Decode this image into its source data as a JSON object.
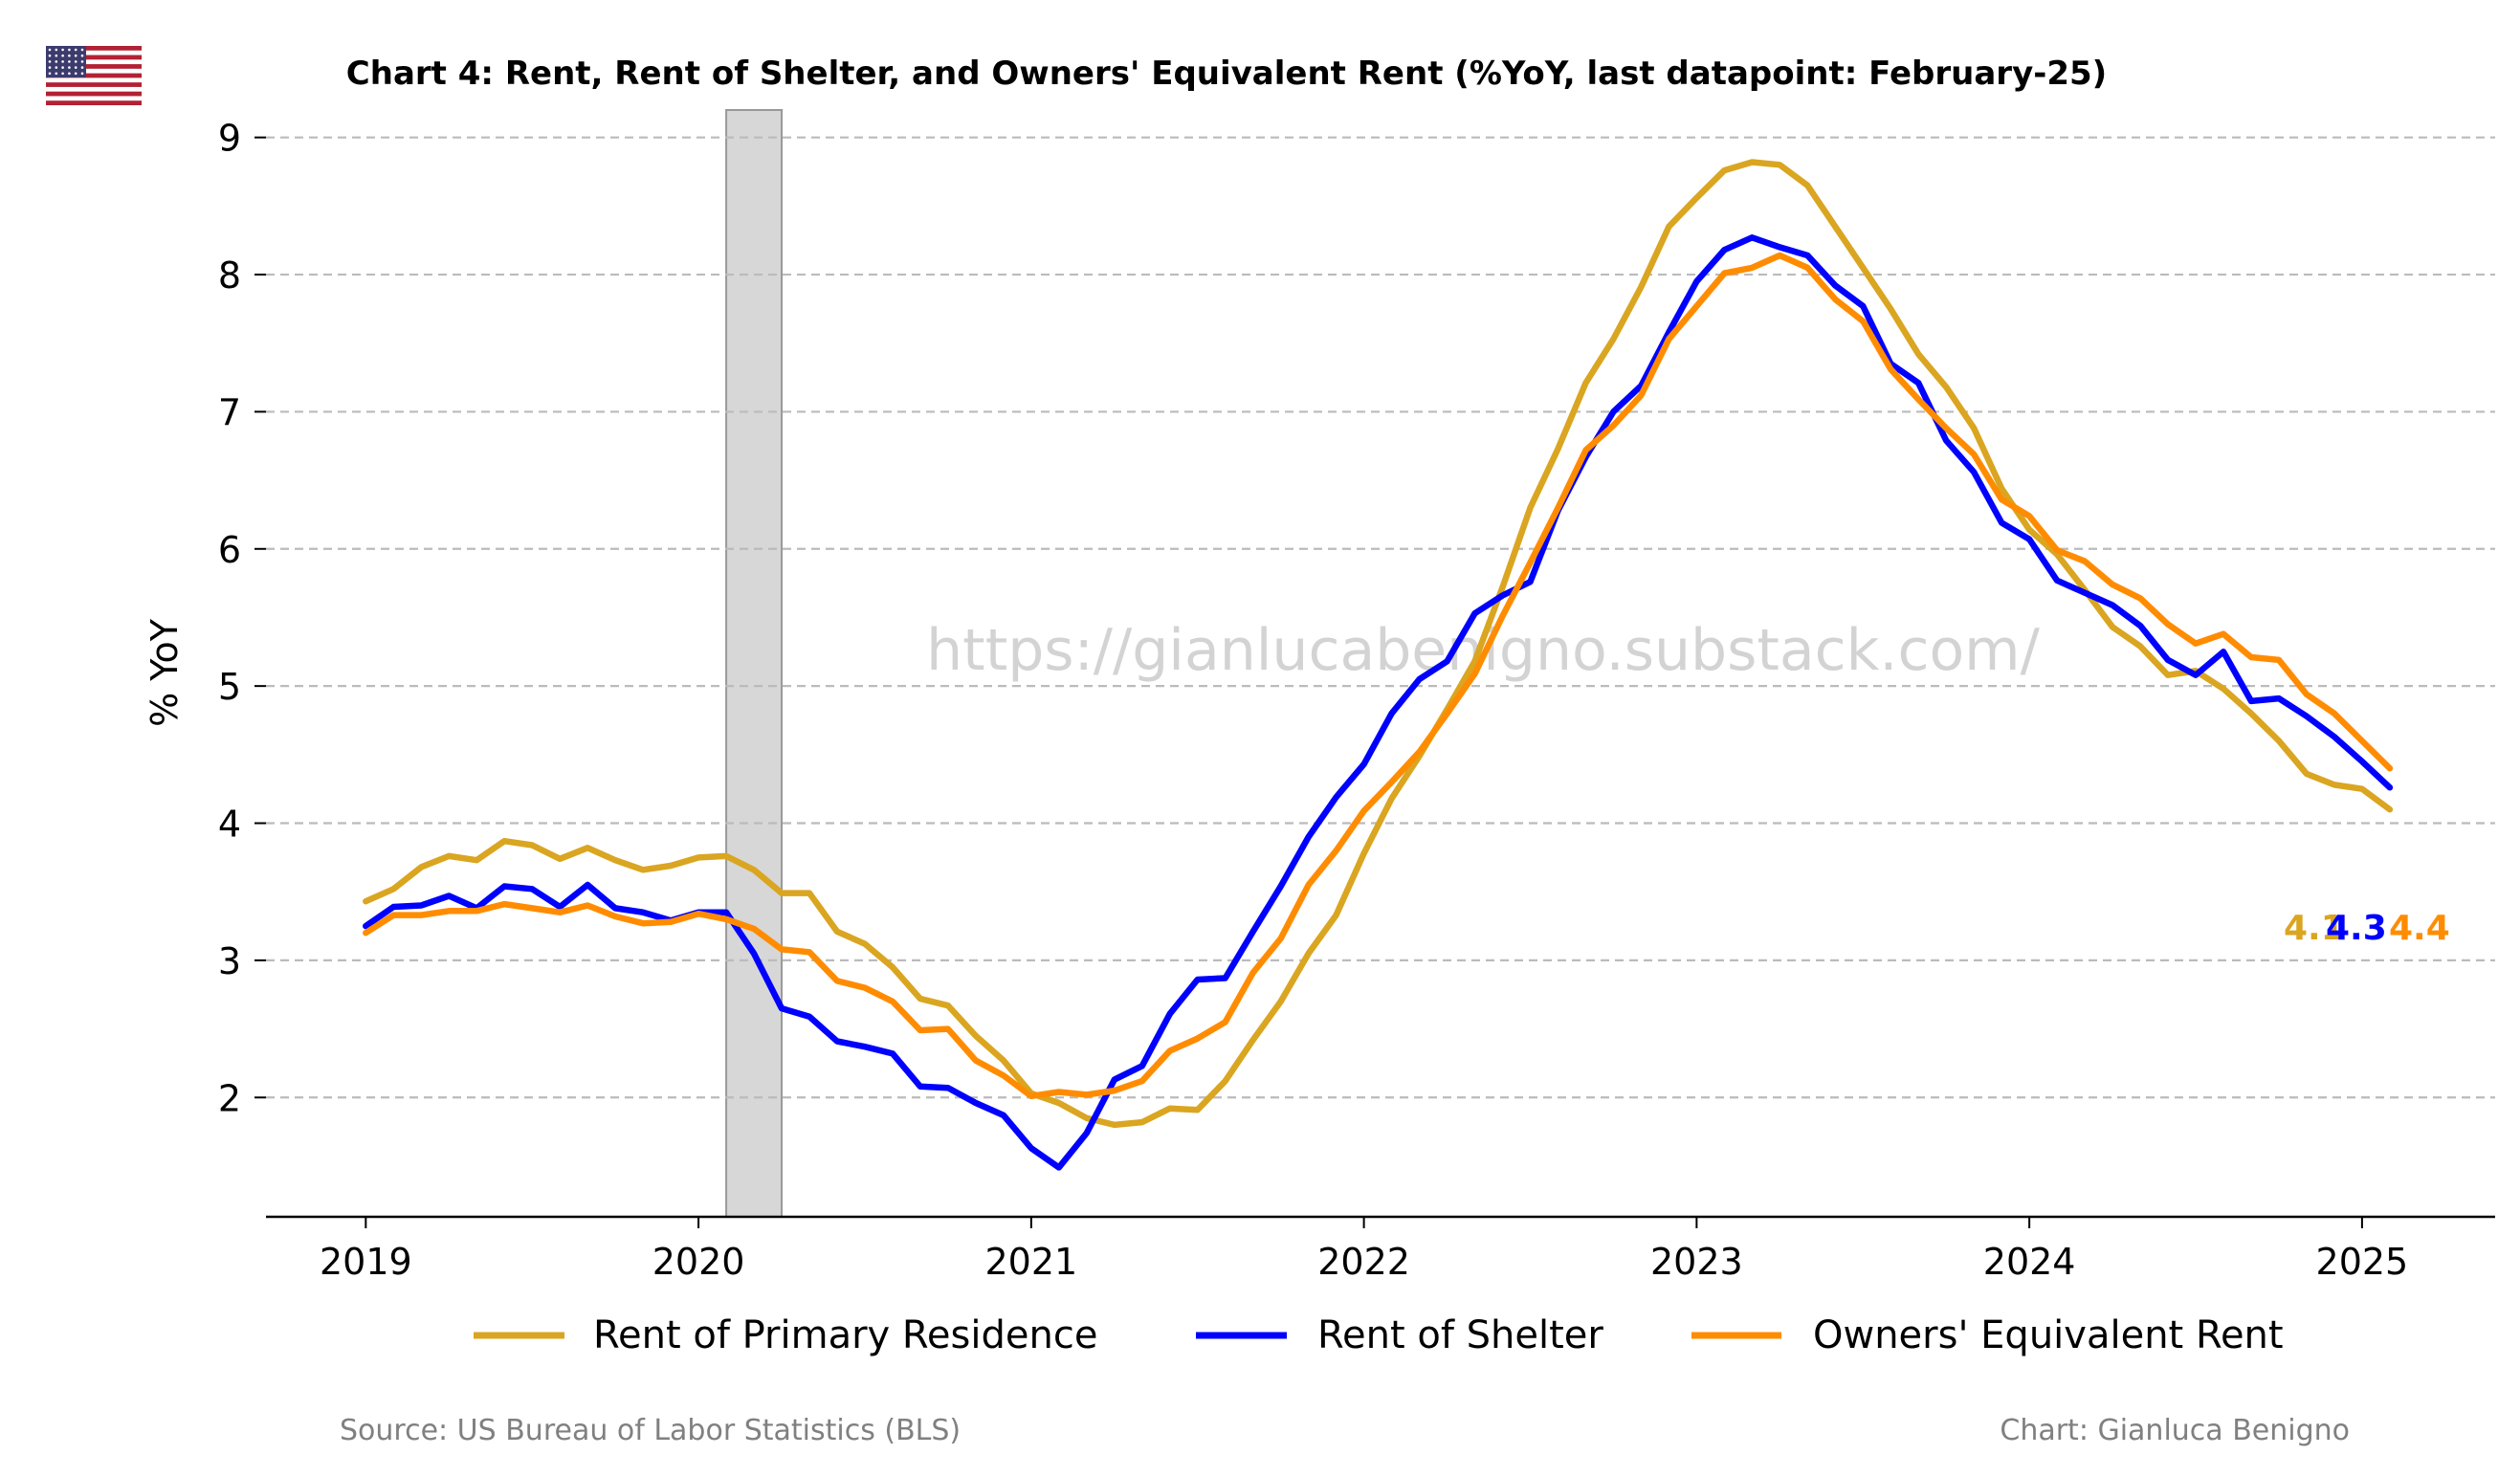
{
  "colors": {
    "rent_primary": "#DAA520",
    "rent_shelter": "#0000FF",
    "oer": "#FF8C00",
    "recession_band": "#BDBDBD",
    "grid": "#BBBBBB",
    "footer": "#808080",
    "watermark": "#D3D3D3"
  },
  "flag_icon": "us-flag-icon",
  "watermark": "https://gianlucabenigno.substack.com/",
  "footer": {
    "source": "Source: US Bureau of Labor Statistics (BLS)",
    "credit": "Chart: Gianluca Benigno"
  },
  "chart_data": {
    "type": "line",
    "title": "Chart 4: Rent, Rent of Shelter, and Owners' Equivalent Rent (%YoY, last datapoint: February-25)",
    "ylabel": "% YoY",
    "xlabel": "",
    "xlim": [
      2018.7,
      2025.4
    ],
    "ylim": [
      1.13,
      9.2
    ],
    "yticks": [
      2,
      3,
      4,
      5,
      6,
      7,
      8,
      9
    ],
    "xticks": [
      2019,
      2020,
      2021,
      2022,
      2023,
      2024,
      2025
    ],
    "grid": "horizontal dashed",
    "legend_position": "bottom",
    "x_start": "2019-01",
    "x_end": "2025-02",
    "shaded_periods": [
      {
        "start": "2020-02",
        "end": "2020-04"
      }
    ],
    "end_labels": [
      "4.1",
      "4.3",
      "4.4"
    ],
    "series": [
      {
        "name": "Rent of Primary Residence",
        "color": "#DAA520",
        "values": [
          3.43,
          3.52,
          3.68,
          3.76,
          3.73,
          3.87,
          3.84,
          3.74,
          3.82,
          3.73,
          3.66,
          3.69,
          3.75,
          3.76,
          3.66,
          3.49,
          3.49,
          3.21,
          3.12,
          2.95,
          2.72,
          2.67,
          2.45,
          2.27,
          2.03,
          1.96,
          1.85,
          1.8,
          1.82,
          1.92,
          1.91,
          2.12,
          2.42,
          2.7,
          3.05,
          3.33,
          3.78,
          4.18,
          4.49,
          4.83,
          5.18,
          5.72,
          6.3,
          6.73,
          7.21,
          7.53,
          7.91,
          8.35,
          8.56,
          8.76,
          8.82,
          8.8,
          8.65,
          8.35,
          8.05,
          7.75,
          7.42,
          7.18,
          6.88,
          6.44,
          6.14,
          5.96,
          5.7,
          5.43,
          5.29,
          5.08,
          5.11,
          4.98,
          4.8,
          4.6,
          4.36,
          4.28,
          4.25,
          4.1
        ]
      },
      {
        "name": "Rent of Shelter",
        "color": "#0000FF",
        "values": [
          3.25,
          3.39,
          3.4,
          3.47,
          3.38,
          3.54,
          3.52,
          3.39,
          3.55,
          3.38,
          3.35,
          3.29,
          3.35,
          3.35,
          3.05,
          2.65,
          2.59,
          2.41,
          2.37,
          2.32,
          2.08,
          2.07,
          1.96,
          1.87,
          1.63,
          1.49,
          1.74,
          2.13,
          2.23,
          2.61,
          2.86,
          2.87,
          3.21,
          3.54,
          3.9,
          4.19,
          4.43,
          4.8,
          5.05,
          5.18,
          5.53,
          5.66,
          5.76,
          6.28,
          6.67,
          7.0,
          7.19,
          7.58,
          7.95,
          8.18,
          8.27,
          8.2,
          8.14,
          7.92,
          7.77,
          7.35,
          7.21,
          6.79,
          6.56,
          6.19,
          6.07,
          5.77,
          5.68,
          5.59,
          5.44,
          5.19,
          5.08,
          5.25,
          4.89,
          4.91,
          4.78,
          4.63,
          4.45,
          4.26
        ]
      },
      {
        "name": "Owners' Equivalent Rent",
        "color": "#FF8C00",
        "values": [
          3.2,
          3.33,
          3.33,
          3.36,
          3.36,
          3.41,
          3.38,
          3.35,
          3.4,
          3.32,
          3.27,
          3.28,
          3.34,
          3.3,
          3.23,
          3.08,
          3.06,
          2.85,
          2.8,
          2.7,
          2.49,
          2.5,
          2.27,
          2.16,
          2.01,
          2.04,
          2.02,
          2.05,
          2.12,
          2.34,
          2.43,
          2.55,
          2.91,
          3.16,
          3.55,
          3.8,
          4.09,
          4.3,
          4.52,
          4.8,
          5.09,
          5.51,
          5.9,
          6.3,
          6.72,
          6.9,
          7.12,
          7.53,
          7.77,
          8.01,
          8.05,
          8.14,
          8.05,
          7.82,
          7.66,
          7.31,
          7.09,
          6.88,
          6.69,
          6.36,
          6.24,
          5.99,
          5.91,
          5.74,
          5.64,
          5.45,
          5.31,
          5.38,
          5.21,
          5.19,
          4.94,
          4.8,
          4.6,
          4.4
        ]
      }
    ]
  }
}
